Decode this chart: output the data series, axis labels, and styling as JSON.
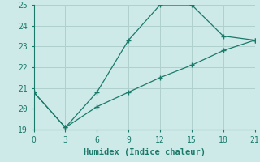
{
  "line1_x": [
    0,
    3,
    6,
    9,
    12,
    15,
    18,
    21
  ],
  "line1_y": [
    20.8,
    19.1,
    20.8,
    23.3,
    25.0,
    25.0,
    23.5,
    23.3
  ],
  "line2_x": [
    0,
    3,
    6,
    9,
    12,
    15,
    18,
    21
  ],
  "line2_y": [
    20.8,
    19.1,
    20.1,
    20.8,
    21.5,
    22.1,
    22.8,
    23.3
  ],
  "line_color": "#1a7a6a",
  "bg_color": "#ceeae8",
  "grid_color": "#b0d0ce",
  "xlabel": "Humidex (Indice chaleur)",
  "xlim": [
    0,
    21
  ],
  "ylim": [
    19,
    25
  ],
  "xticks": [
    0,
    3,
    6,
    9,
    12,
    15,
    18,
    21
  ],
  "yticks": [
    19,
    20,
    21,
    22,
    23,
    24,
    25
  ],
  "font_family": "monospace",
  "label_fontsize": 7.5,
  "tick_fontsize": 7
}
